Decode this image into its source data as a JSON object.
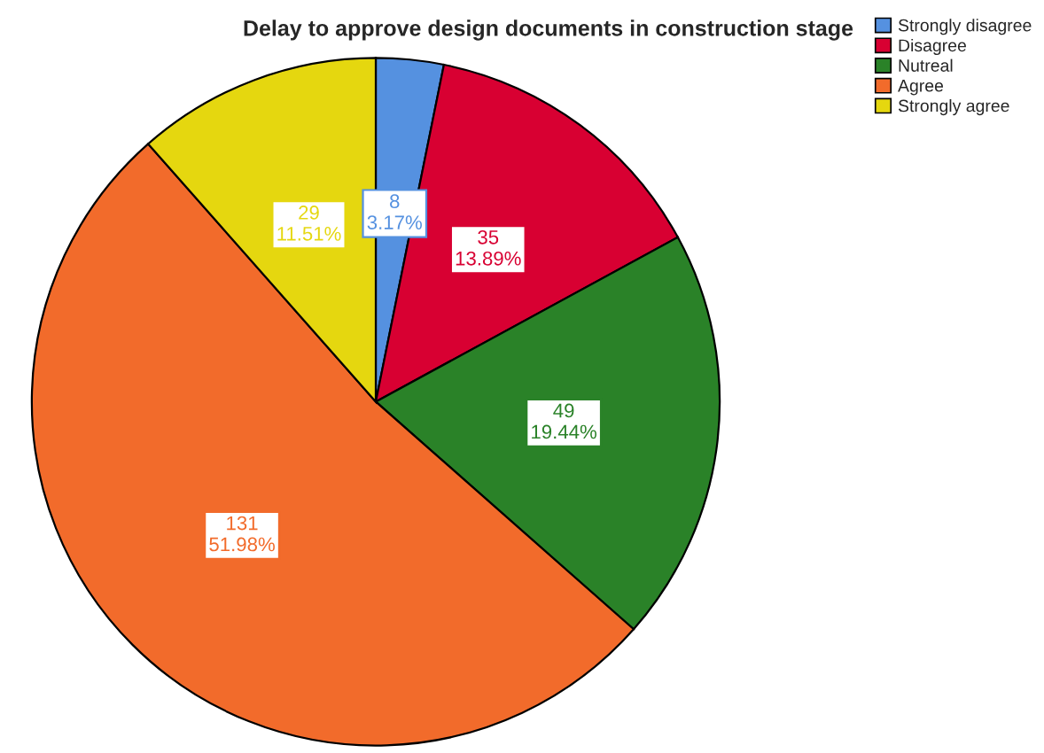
{
  "chart_data": {
    "type": "pie",
    "title": "Delay to approve design documents in construction stage",
    "categories": [
      "Strongly disagree",
      "Disagree",
      "Nutreal",
      "Agree",
      "Strongly agree"
    ],
    "values": [
      8,
      35,
      49,
      131,
      29
    ],
    "colors": [
      "#5591e0",
      "#d80032",
      "#2a8228",
      "#f26b2b",
      "#e5d70f"
    ],
    "value_labels": [
      "8\n3.17%",
      "35\n13.89%",
      "49\n19.44%",
      "131\n51.98%",
      "29\n11.51%"
    ],
    "legend": "top right"
  }
}
